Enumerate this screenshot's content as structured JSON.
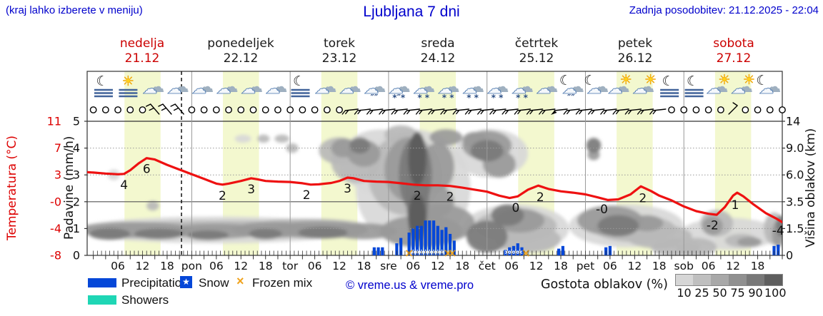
{
  "header": {
    "hint": "(kraj lahko izberete v meniju)",
    "title": "Ljubljana 7 dni",
    "updated": "Zadnja posodobitev: 21.12.2025 - 22:04"
  },
  "days": [
    {
      "name": "nedelja",
      "date": "21.12",
      "color": "#cc0000"
    },
    {
      "name": "ponedeljek",
      "date": "22.12",
      "color": "#1a1a1a"
    },
    {
      "name": "torek",
      "date": "23.12",
      "color": "#1a1a1a"
    },
    {
      "name": "sreda",
      "date": "24.12",
      "color": "#1a1a1a"
    },
    {
      "name": "četrtek",
      "date": "25.12",
      "color": "#1a1a1a"
    },
    {
      "name": "petek",
      "date": "26.12",
      "color": "#1a1a1a"
    },
    {
      "name": "sobota",
      "date": "27.12",
      "color": "#cc0000"
    }
  ],
  "axes": {
    "temp": {
      "title": "Temperatura (°C)",
      "ticks": [
        "11",
        "7",
        "3",
        "-0",
        "-4",
        "-8"
      ],
      "color": "#dd0000"
    },
    "precip": {
      "title": "Padavine (mm/h)",
      "ticks": [
        "5",
        "4",
        "3",
        "2",
        "1",
        "0"
      ]
    },
    "cloudheight": {
      "title": "Višina oblakov (km)",
      "ticks": [
        "14",
        "9.0",
        "6.0",
        "3.5",
        "1.5",
        "0"
      ]
    }
  },
  "legend": {
    "precipitation": "Precipitation",
    "snow": "Snow",
    "frozen_mix": "Frozen mix",
    "showers": "Showers",
    "snow_star": "★",
    "frozen_x": "×",
    "copyright": "© vreme.us & vreme.pro",
    "cloud_density_label": "Gostota oblakov (%)",
    "cloud_density_ticks": [
      "10",
      "25",
      "50",
      "75",
      "90",
      "100"
    ],
    "cloud_density_colors": [
      "#d6d6d6",
      "#bfbfbf",
      "#a8a8a8",
      "#909090",
      "#787878",
      "#5e5e5e"
    ]
  },
  "chart_data": {
    "type": "meteogram",
    "x_domain_hours": [
      -1.5,
      168
    ],
    "now_hour": 21.5,
    "daylight": {
      "start": 7.6,
      "end": 16.4
    },
    "hour_labels": [
      "06",
      "12",
      "18"
    ],
    "day_abbrevs": [
      "pon",
      "tor",
      "sre",
      "čet",
      "pet",
      "sob"
    ],
    "precip_axis_range": [
      0,
      5
    ],
    "temperature_c": [
      [
        -1.5,
        3.9
      ],
      [
        0,
        3.85
      ],
      [
        3,
        3.7
      ],
      [
        6,
        3.6
      ],
      [
        7.5,
        3.65
      ],
      [
        9,
        4.2
      ],
      [
        11,
        5.2
      ],
      [
        13,
        6.0
      ],
      [
        15,
        5.8
      ],
      [
        18,
        5.0
      ],
      [
        21,
        4.3
      ],
      [
        24,
        3.6
      ],
      [
        27,
        2.9
      ],
      [
        30,
        2.2
      ],
      [
        31.5,
        2.05
      ],
      [
        33,
        2.2
      ],
      [
        36,
        2.6
      ],
      [
        38.5,
        3.0
      ],
      [
        40,
        2.85
      ],
      [
        42,
        2.6
      ],
      [
        45,
        2.5
      ],
      [
        48,
        2.45
      ],
      [
        51,
        2.25
      ],
      [
        53,
        2.05
      ],
      [
        55,
        2.1
      ],
      [
        58,
        2.3
      ],
      [
        60,
        2.6
      ],
      [
        62,
        3.1
      ],
      [
        63.5,
        3.0
      ],
      [
        66,
        2.6
      ],
      [
        69,
        2.5
      ],
      [
        72,
        2.45
      ],
      [
        75,
        2.25
      ],
      [
        78,
        2.05
      ],
      [
        81,
        1.95
      ],
      [
        84,
        1.95
      ],
      [
        87,
        1.85
      ],
      [
        90,
        1.6
      ],
      [
        93,
        1.3
      ],
      [
        96,
        1.0
      ],
      [
        99,
        0.4
      ],
      [
        101.5,
        0.05
      ],
      [
        103.5,
        0.3
      ],
      [
        106,
        1.3
      ],
      [
        108.5,
        1.9
      ],
      [
        111,
        1.4
      ],
      [
        114,
        1.05
      ],
      [
        117,
        0.85
      ],
      [
        120,
        0.6
      ],
      [
        123,
        0.15
      ],
      [
        125.5,
        -0.25
      ],
      [
        128,
        -0.15
      ],
      [
        131,
        0.6
      ],
      [
        133.5,
        1.8
      ],
      [
        136,
        1.1
      ],
      [
        138,
        0.4
      ],
      [
        141,
        -0.3
      ],
      [
        144,
        -1.2
      ],
      [
        147,
        -1.9
      ],
      [
        150,
        -2.3
      ],
      [
        152,
        -2.45
      ],
      [
        154,
        -1.3
      ],
      [
        156,
        0.4
      ],
      [
        157,
        0.85
      ],
      [
        158.5,
        0.3
      ],
      [
        161,
        -0.9
      ],
      [
        164,
        -2.2
      ],
      [
        166.5,
        -3.0
      ],
      [
        168,
        -3.55
      ]
    ],
    "temperature_labels": [
      [
        7.5,
        "4"
      ],
      [
        13,
        "6"
      ],
      [
        31.5,
        "2"
      ],
      [
        38.5,
        "3"
      ],
      [
        52,
        "2"
      ],
      [
        62,
        "3"
      ],
      [
        79,
        "2"
      ],
      [
        87,
        "2"
      ],
      [
        103,
        "0"
      ],
      [
        109,
        "2"
      ],
      [
        124,
        "-0"
      ],
      [
        134,
        "2"
      ],
      [
        151,
        "-2"
      ],
      [
        156.5,
        "1"
      ],
      [
        167,
        "-4"
      ]
    ],
    "precipitation_mm_h": [
      [
        68.5,
        0.3
      ],
      [
        69.5,
        0.3
      ],
      [
        70.5,
        0.3
      ],
      [
        74,
        0.45
      ],
      [
        75,
        0.65
      ],
      [
        77,
        0.85
      ],
      [
        78,
        1.0
      ],
      [
        79,
        1.1
      ],
      [
        80,
        1.1
      ],
      [
        81,
        1.3
      ],
      [
        82,
        1.3
      ],
      [
        83,
        1.3
      ],
      [
        84,
        1.1
      ],
      [
        85,
        0.95
      ],
      [
        86,
        1.05
      ],
      [
        87,
        0.8
      ],
      [
        88,
        0.55
      ],
      [
        100.5,
        0.2
      ],
      [
        101.5,
        0.3
      ],
      [
        102.5,
        0.35
      ],
      [
        103.5,
        0.45
      ],
      [
        104.5,
        0.3
      ],
      [
        113.5,
        0.25
      ],
      [
        114.5,
        0.35
      ],
      [
        125,
        0.3
      ],
      [
        126,
        0.35
      ],
      [
        166,
        0.35
      ],
      [
        167,
        0.4
      ]
    ],
    "snow_marker_hours": [
      78,
      79,
      80,
      81,
      82,
      83,
      84,
      85,
      101,
      102,
      103,
      104
    ],
    "frozen_mix_marker_hours": [
      77,
      86.5,
      87.5,
      105.5
    ],
    "cloud_shades": [
      "#d8d8d8",
      "#b9b9b9",
      "#999999",
      "#7a7a7a",
      "#5a5a5a"
    ],
    "cloud_blobs": [
      [
        10,
        0.95,
        14,
        0.3,
        3
      ],
      [
        4,
        0.8,
        5,
        0.22,
        4
      ],
      [
        16,
        0.8,
        6,
        0.2,
        4
      ],
      [
        30,
        0.9,
        12,
        0.28,
        3
      ],
      [
        28,
        0.75,
        5,
        0.18,
        4
      ],
      [
        44,
        0.95,
        10,
        0.3,
        3
      ],
      [
        42,
        0.8,
        4,
        0.2,
        4
      ],
      [
        55,
        0.95,
        12,
        0.32,
        3
      ],
      [
        56,
        0.85,
        6,
        0.22,
        4
      ],
      [
        66,
        0.9,
        8,
        0.3,
        3
      ],
      [
        33,
        1.08,
        30,
        0.22,
        2
      ],
      [
        52,
        1.12,
        14,
        0.25,
        2
      ],
      [
        30,
        0.95,
        34,
        0.5,
        1
      ],
      [
        5,
        3.0,
        1.5,
        0.2,
        1
      ],
      [
        14.5,
        1.85,
        1.5,
        0.18,
        2
      ],
      [
        36.5,
        4.35,
        2,
        0.15,
        1
      ],
      [
        41.5,
        4.35,
        1.5,
        0.15,
        2
      ],
      [
        46,
        4.35,
        1.8,
        0.15,
        2
      ],
      [
        48.5,
        4.0,
        1.5,
        0.18,
        2
      ],
      [
        70,
        3.5,
        10,
        1.2,
        1
      ],
      [
        60,
        3.9,
        5,
        0.5,
        2
      ],
      [
        61,
        4.0,
        3,
        0.35,
        3
      ],
      [
        64,
        3.5,
        6,
        0.8,
        2
      ],
      [
        66,
        3.8,
        4,
        0.5,
        3
      ],
      [
        65,
        4.1,
        2.5,
        0.3,
        4
      ],
      [
        78,
        2.5,
        14,
        2.2,
        1
      ],
      [
        76,
        3.0,
        9,
        1.5,
        2
      ],
      [
        77,
        3.2,
        6,
        1.2,
        3
      ],
      [
        78.5,
        3.0,
        4,
        1.4,
        4
      ],
      [
        79,
        3.6,
        2.2,
        1.0,
        5
      ],
      [
        79,
        1.4,
        2.2,
        0.9,
        5
      ],
      [
        79,
        2.5,
        2.8,
        2.0,
        4
      ],
      [
        84,
        3.3,
        4,
        0.9,
        3
      ],
      [
        86,
        4.4,
        4,
        0.3,
        3
      ],
      [
        75,
        4.5,
        4,
        0.35,
        2
      ],
      [
        83,
        2.0,
        5,
        0.6,
        3
      ],
      [
        85,
        1.2,
        8,
        0.7,
        3
      ],
      [
        80,
        0.9,
        10,
        0.6,
        3
      ],
      [
        97,
        3.8,
        9,
        0.9,
        1
      ],
      [
        96,
        4.1,
        6,
        0.55,
        3
      ],
      [
        96,
        3.9,
        4,
        0.4,
        4
      ],
      [
        99,
        3.4,
        4,
        0.5,
        3
      ],
      [
        93,
        4.3,
        3,
        0.3,
        3
      ],
      [
        103,
        1.0,
        13,
        0.9,
        1
      ],
      [
        96,
        0.7,
        5,
        0.6,
        4
      ],
      [
        103,
        1.1,
        10,
        0.6,
        2
      ],
      [
        104,
        1.3,
        6,
        0.45,
        3
      ],
      [
        106,
        0.6,
        8,
        0.5,
        2
      ],
      [
        101,
        1.5,
        4,
        0.4,
        4
      ],
      [
        122,
        4.1,
        1.8,
        0.28,
        4
      ],
      [
        122,
        3.75,
        1.5,
        0.2,
        3
      ],
      [
        130,
        1.1,
        14,
        0.8,
        1
      ],
      [
        126,
        1.3,
        8,
        0.55,
        3
      ],
      [
        128,
        1.1,
        5,
        0.4,
        4
      ],
      [
        132,
        1.0,
        10,
        0.5,
        2
      ],
      [
        138,
        0.7,
        8,
        0.45,
        2
      ],
      [
        135,
        1.2,
        4,
        0.3,
        3
      ],
      [
        142,
        0.3,
        6,
        0.35,
        2
      ],
      [
        155,
        0.8,
        12,
        0.6,
        1
      ],
      [
        147,
        0.3,
        5,
        0.35,
        2
      ],
      [
        152,
        1.2,
        4,
        0.5,
        2
      ],
      [
        151,
        1.1,
        2.5,
        0.35,
        3
      ],
      [
        158,
        0.55,
        4,
        0.25,
        2
      ],
      [
        160,
        0.5,
        3,
        0.18,
        3
      ],
      [
        166,
        1.0,
        2.5,
        0.6,
        2
      ],
      [
        167,
        0.8,
        1.5,
        0.5,
        3
      ],
      [
        167.5,
        1.1,
        1,
        0.4,
        4
      ]
    ],
    "wind_3h": [
      "o",
      "o",
      "o",
      "o",
      "o",
      "b45",
      "b45",
      "b45",
      "o",
      "o",
      "o",
      "o",
      "o",
      "o",
      "o",
      "o",
      "o",
      "o",
      "o",
      "o",
      "o",
      "b0",
      "b0",
      "b0",
      "b0",
      "b0",
      "b0",
      "b0",
      "b0",
      "b0",
      "b0",
      "b0",
      "b0",
      "b0",
      "b0",
      "b0",
      "b0",
      "b0",
      "bf",
      "b0",
      "b0",
      "b0",
      "b0",
      "b0",
      "b0",
      "b0",
      "b0",
      "o",
      "o",
      "o",
      "o",
      "o",
      "b30",
      "o",
      "o",
      "o",
      "o"
    ],
    "icons_6h": [
      "moon-fog",
      "sun-fog",
      "cloud",
      "cloud",
      "cloud",
      "cloud",
      "cloud",
      "cloud",
      "moon-fog",
      "cloud",
      "cloud",
      "cloud-rain",
      "cloud-sleet",
      "cloud-snow",
      "cloud-snow",
      "cloud-snow",
      "cloud-snow",
      "cloud-snow",
      "cloud",
      "moon-cloud-rain",
      "moon-cloud",
      "sun-cloud",
      "sun-cloud",
      "moon-fog",
      "moon-fog",
      "sun-cloud",
      "sun-cloud",
      "moon-cloud"
    ],
    "colors": {
      "temp_line": "#ee1111",
      "precip": "#0547d8",
      "daylight_band": "#f3f8cf",
      "frozen": "#f0a31d",
      "showers": "#1fd6b5"
    }
  }
}
